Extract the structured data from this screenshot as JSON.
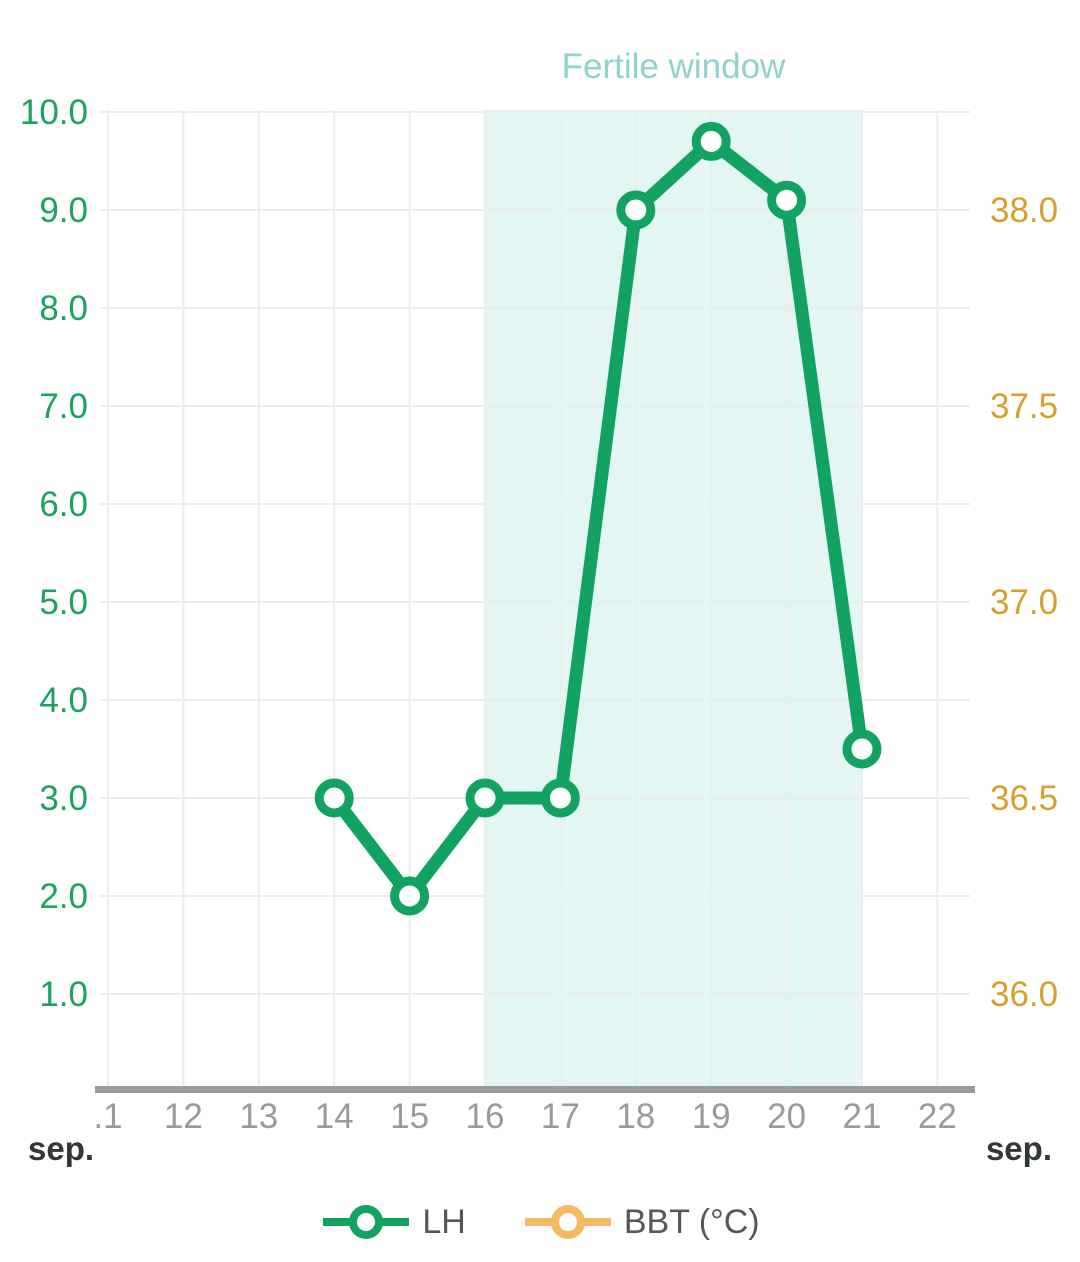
{
  "chart_data": {
    "type": "line",
    "title": "Fertile window",
    "background": "#ffffff",
    "grid": true,
    "gridline_color": "#ececec",
    "axis_line_color": "#9b9b9b",
    "annotations": {
      "fertile_window": {
        "label": "Fertile window",
        "label_color": "#8fd3cc",
        "x_start": 16,
        "x_end": 21,
        "fill": "#e4f6f3"
      }
    },
    "x_axis": {
      "tick_labels": [
        ".1",
        "12",
        "13",
        "14",
        "15",
        "16",
        "17",
        "18",
        "19",
        "20",
        "21",
        "22"
      ],
      "tick_values": [
        11,
        12,
        13,
        14,
        15,
        16,
        17,
        18,
        19,
        20,
        21,
        22
      ],
      "month_label_left": "sep.",
      "month_label_right": "sep.",
      "label_color": "#9a9a9a"
    },
    "left_axis": {
      "series": "LH",
      "color": "#1ca15f",
      "tick_labels": [
        "1.0",
        "2.0",
        "3.0",
        "4.0",
        "5.0",
        "6.0",
        "7.0",
        "8.0",
        "9.0",
        "10.0"
      ],
      "tick_values": [
        1,
        2,
        3,
        4,
        5,
        6,
        7,
        8,
        9,
        10
      ],
      "range": [
        0,
        10.2
      ]
    },
    "right_axis": {
      "series": "BBT (°C)",
      "color": "#d6a02f",
      "tick_labels": [
        "36.0",
        "36.5",
        "37.0",
        "37.5",
        "38.0"
      ],
      "tick_values": [
        36,
        36.5,
        37,
        37.5,
        38
      ],
      "range": [
        35.75,
        38.3
      ]
    },
    "series": [
      {
        "name": "LH",
        "color": "#12a262",
        "axis": "left",
        "x": [
          14,
          15,
          16,
          17,
          18,
          19,
          20,
          21
        ],
        "values": [
          3.0,
          2.0,
          3.0,
          3.0,
          9.0,
          9.7,
          9.1,
          3.5
        ]
      },
      {
        "name": "BBT (°C)",
        "color": "#f6bb62",
        "axis": "right",
        "x": [],
        "values": []
      }
    ],
    "legend": {
      "position": "bottom",
      "entries": [
        {
          "label": "LH",
          "color": "#12a262"
        },
        {
          "label": "BBT (°C)",
          "color": "#f6bb62"
        }
      ]
    }
  }
}
